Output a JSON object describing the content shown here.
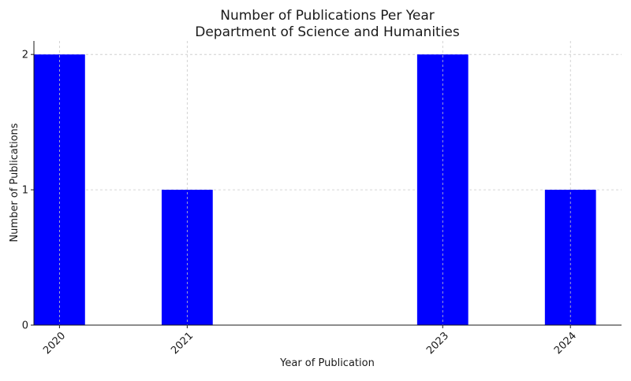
{
  "chart_data": {
    "type": "bar",
    "title": "Number of Publications Per Year",
    "subtitle": "Department of Science and Humanities",
    "xlabel": "Year of Publication",
    "ylabel": "Number of Publications",
    "x": [
      2020,
      2021,
      2023,
      2024
    ],
    "categories": [
      "2020",
      "2021",
      "2023",
      "2024"
    ],
    "values": [
      2,
      1,
      2,
      1
    ],
    "xlim": [
      2019.8,
      2024.4
    ],
    "ylim": [
      0,
      2.1
    ],
    "yticks": [
      0,
      1,
      2
    ],
    "bar_width": 0.4,
    "bar_color": "#0000ff",
    "grid": true,
    "grid_color": "#c8c8c8",
    "xtick_rotation": 45
  }
}
